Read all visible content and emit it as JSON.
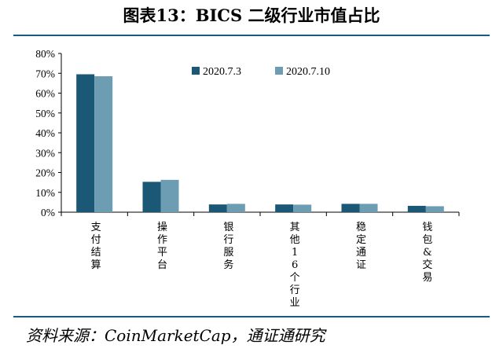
{
  "title": "图表13：BICS 二级行业市值占比",
  "source": "资料来源：CoinMarketCap，通证通研究",
  "colors": {
    "series1": "#1b5876",
    "series2": "#6c9db2",
    "axis": "#000000",
    "rule": "#1a5a7a"
  },
  "chart_data": {
    "type": "bar",
    "categories": [
      "支付结算",
      "操作平台",
      "银行服务",
      "其他16个行业",
      "稳定通证",
      "钱包&交易"
    ],
    "series": [
      {
        "name": "2020.7.3",
        "values": [
          69.5,
          15.3,
          3.9,
          3.9,
          4.2,
          3.2
        ]
      },
      {
        "name": "2020.7.10",
        "values": [
          68.5,
          16.3,
          4.2,
          3.8,
          4.2,
          3.0
        ]
      }
    ],
    "yticks": [
      "0%",
      "10%",
      "20%",
      "30%",
      "40%",
      "50%",
      "60%",
      "70%",
      "80%"
    ],
    "ylim": [
      0,
      80
    ],
    "legend_position": "top-right",
    "grid": false
  }
}
